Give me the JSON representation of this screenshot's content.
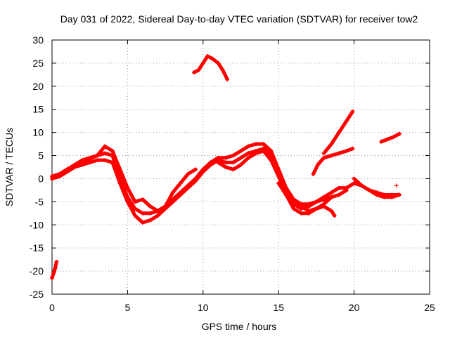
{
  "chart_data": {
    "type": "scatter",
    "title": "Day 031 of 2022, Sidereal Day-to-day VTEC variation (SDTVAR) for receiver tow2",
    "xlabel": "GPS time / hours",
    "ylabel": "SDTVAR / TECUs",
    "xlim": [
      0,
      25
    ],
    "ylim": [
      -25,
      30
    ],
    "xticks": [
      0,
      5,
      10,
      15,
      20,
      25
    ],
    "yticks": [
      -25,
      -20,
      -15,
      -10,
      -5,
      0,
      5,
      10,
      15,
      20,
      25,
      30
    ],
    "grid": true,
    "color": "#ff0000",
    "marker": "+",
    "series": [
      {
        "name": "trace-main-a",
        "x": [
          0.0,
          0.5,
          1.0,
          1.5,
          2.0,
          2.5,
          3.0,
          3.5,
          4.0,
          4.5,
          5.0,
          5.5,
          6.0,
          6.5,
          7.0,
          7.5,
          8.0,
          8.5,
          9.0,
          9.5,
          10.0,
          10.5,
          11.0,
          11.5,
          12.0,
          12.5,
          13.0,
          13.5,
          14.0,
          14.5,
          15.0,
          15.5,
          16.0,
          16.5,
          17.0,
          17.5,
          18.0,
          18.5,
          19.0,
          19.5,
          20.0,
          20.5,
          21.0,
          21.5,
          22.0,
          22.5,
          22.9
        ],
        "y": [
          0.5,
          1.0,
          2.0,
          3.0,
          4.0,
          4.5,
          5.0,
          5.5,
          5.0,
          0.0,
          -4.0,
          -6.5,
          -7.5,
          -7.5,
          -7.0,
          -6.0,
          -4.5,
          -3.0,
          -1.5,
          0.0,
          2.0,
          3.5,
          4.5,
          4.5,
          5.0,
          6.0,
          7.0,
          7.5,
          7.5,
          6.0,
          2.0,
          -2.0,
          -4.5,
          -5.5,
          -5.5,
          -5.0,
          -4.0,
          -3.0,
          -2.0,
          -2.0,
          -1.0,
          -1.5,
          -2.5,
          -3.0,
          -3.5,
          -3.5,
          -3.5
        ]
      },
      {
        "name": "trace-main-b",
        "x": [
          0.0,
          0.5,
          1.0,
          1.5,
          2.0,
          2.5,
          3.0,
          3.5,
          4.0,
          4.5,
          5.0,
          5.5,
          6.0,
          6.5,
          7.0,
          7.5,
          8.0,
          8.5,
          9.0,
          9.5,
          10.0,
          10.5,
          11.0,
          11.5,
          12.0,
          12.5,
          13.0,
          13.5,
          14.0,
          14.5,
          15.0,
          15.5,
          16.0,
          16.5,
          17.0,
          17.5,
          18.0,
          18.5,
          19.0,
          19.5
        ],
        "y": [
          0.0,
          0.5,
          1.5,
          2.5,
          3.0,
          3.5,
          4.0,
          4.0,
          3.5,
          -1.0,
          -5.0,
          -8.0,
          -9.5,
          -9.0,
          -8.0,
          -6.5,
          -5.0,
          -3.5,
          -2.0,
          -0.5,
          1.5,
          3.0,
          4.0,
          3.5,
          3.5,
          4.5,
          5.5,
          6.0,
          6.5,
          5.0,
          1.0,
          -3.5,
          -6.5,
          -7.5,
          -7.5,
          -6.5,
          -5.5,
          -4.0,
          -3.5,
          -2.5
        ]
      },
      {
        "name": "trace-main-c",
        "x": [
          0.3,
          1.0,
          2.0,
          3.0,
          3.5,
          4.0,
          4.5,
          5.0,
          5.5,
          6.0,
          6.5,
          7.0,
          7.5,
          8.0,
          8.5,
          9.0,
          9.5
        ],
        "y": [
          0.5,
          2.0,
          3.5,
          5.0,
          7.0,
          6.0,
          2.0,
          -2.0,
          -5.0,
          -4.5,
          -6.0,
          -7.0,
          -6.0,
          -3.0,
          -1.0,
          1.0,
          2.0
        ]
      },
      {
        "name": "trace-main-d",
        "x": [
          11.0,
          11.5,
          12.0,
          12.5,
          13.0,
          13.5,
          14.0,
          14.5,
          15.0,
          15.5,
          16.0,
          16.5,
          17.0,
          17.5,
          18.0,
          18.5,
          18.7
        ],
        "y": [
          3.5,
          2.5,
          2.0,
          3.0,
          4.5,
          5.5,
          6.0,
          4.0,
          0.5,
          -3.0,
          -5.0,
          -6.0,
          -7.0,
          -6.5,
          -6.0,
          -7.0,
          -8.0
        ]
      },
      {
        "name": "trace-main-e",
        "x": [
          15.0,
          15.5,
          16.0,
          16.5,
          17.0,
          17.5,
          18.0,
          18.5
        ],
        "y": [
          -1.0,
          -3.5,
          -5.5,
          -6.5,
          -6.0,
          -5.0,
          -4.5,
          -4.0
        ]
      },
      {
        "name": "trace-start-dip",
        "x": [
          0.0,
          0.1,
          0.2,
          0.3
        ],
        "y": [
          -21.5,
          -20.5,
          -19.5,
          -18.0
        ]
      },
      {
        "name": "trace-arc-high",
        "x": [
          9.4,
          9.7,
          10.0,
          10.3,
          10.6,
          11.0,
          11.3,
          11.6
        ],
        "y": [
          23.0,
          23.5,
          25.0,
          26.5,
          26.0,
          25.0,
          23.5,
          21.5
        ]
      },
      {
        "name": "trace-rise-a",
        "x": [
          18.0,
          18.5,
          19.0,
          19.5,
          19.9
        ],
        "y": [
          5.5,
          7.5,
          10.0,
          12.5,
          14.5
        ]
      },
      {
        "name": "trace-rise-b",
        "x": [
          17.3,
          17.6,
          18.0,
          18.5,
          19.0,
          19.5,
          19.9
        ],
        "y": [
          1.0,
          3.0,
          4.5,
          5.0,
          5.5,
          6.0,
          6.5
        ]
      },
      {
        "name": "trace-late-high",
        "x": [
          21.8,
          22.2,
          22.6,
          23.0
        ],
        "y": [
          8.0,
          8.5,
          9.0,
          9.7
        ]
      },
      {
        "name": "trace-late-low",
        "x": [
          20.0,
          20.5,
          21.0,
          21.5,
          22.0,
          22.5,
          23.0
        ],
        "y": [
          0.0,
          -1.5,
          -2.5,
          -3.5,
          -4.0,
          -4.0,
          -3.5
        ]
      }
    ],
    "outliers": [
      {
        "x": 22.8,
        "y": -1.5
      }
    ]
  }
}
